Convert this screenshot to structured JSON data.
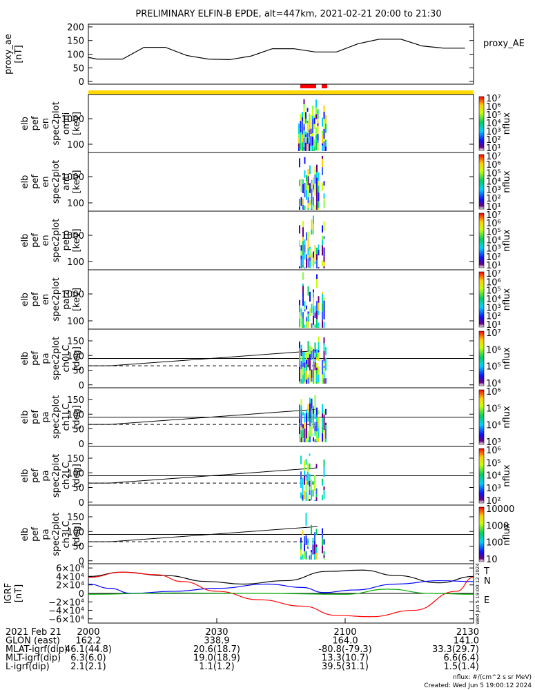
{
  "title": "PRELIMINARY ELFIN-B EPDE, alt=447km, 2021-02-21 20:00 to 21:30",
  "colors": {
    "curve": "#000000",
    "bar_red": "#ff0000",
    "bar_yellow": "#ffd800",
    "dashed": "#000000"
  },
  "chart_data": [
    {
      "type": "line",
      "panel": "proxy_ae",
      "ylabel": [
        "proxy_ae",
        "[nT]"
      ],
      "legend": "proxy_AE",
      "ylim": [
        -10,
        210
      ],
      "yticks": [
        0,
        50,
        100,
        150,
        200
      ],
      "x": [
        0,
        2,
        8,
        13,
        18,
        23,
        28,
        33,
        38,
        43,
        48,
        53,
        58,
        63,
        68,
        73,
        78,
        83,
        88
      ],
      "y": [
        88,
        82,
        82,
        125,
        125,
        95,
        82,
        80,
        93,
        120,
        120,
        108,
        108,
        138,
        155,
        155,
        130,
        122,
        122
      ]
    },
    {
      "type": "heatmap",
      "panel": "en_omni",
      "ylabel": [
        "elb",
        "pef",
        "en",
        "spec2plot",
        "omni",
        "[keV]"
      ],
      "yticks": [
        "100",
        "1000"
      ],
      "colorbar": {
        "label": "nflux",
        "ticks": [
          "10¹",
          "10²",
          "10³",
          "10⁴",
          "10⁵",
          "10⁶",
          "10⁷"
        ]
      }
    },
    {
      "type": "heatmap",
      "panel": "en_anti",
      "ylabel": [
        "elb",
        "pef",
        "en",
        "spec2plot",
        "anti",
        "[keV]"
      ],
      "yticks": [
        "100",
        "1000"
      ],
      "colorbar": {
        "label": "nflux",
        "ticks": [
          "10¹",
          "10²",
          "10³",
          "10⁴",
          "10⁵",
          "10⁶",
          "10⁷"
        ]
      }
    },
    {
      "type": "heatmap",
      "panel": "en_perp",
      "ylabel": [
        "elb",
        "pef",
        "en",
        "spec2plot",
        "perp",
        "[keV]"
      ],
      "yticks": [
        "100",
        "1000"
      ],
      "colorbar": {
        "label": "nflux",
        "ticks": [
          "10¹",
          "10²",
          "10³",
          "10⁴",
          "10⁵",
          "10⁶",
          "10⁷"
        ]
      }
    },
    {
      "type": "heatmap",
      "panel": "en_para",
      "ylabel": [
        "elb",
        "pef",
        "en",
        "spec2plot",
        "para",
        "[keV]"
      ],
      "yticks": [
        "100",
        "1000"
      ],
      "colorbar": {
        "label": "nflux",
        "ticks": [
          "10¹",
          "10²",
          "10³",
          "10⁴",
          "10⁵",
          "10⁶",
          "10⁷"
        ]
      }
    },
    {
      "type": "heatmap",
      "panel": "pa_ch0LC",
      "ylabel": [
        "elb",
        "pef",
        "pa",
        "spec2plot",
        "ch0LC",
        "[deg]"
      ],
      "yticks": [
        "0",
        "50",
        "100",
        "150"
      ],
      "ylim": [
        -10,
        190
      ],
      "colorbar": {
        "label": "nflux",
        "ticks": [
          "10⁴",
          "10⁵",
          "10⁶",
          "10⁷"
        ]
      }
    },
    {
      "type": "heatmap",
      "panel": "pa_ch1LC",
      "ylabel": [
        "elb",
        "pef",
        "pa",
        "spec2plot",
        "ch1LC",
        "[deg]"
      ],
      "yticks": [
        "0",
        "50",
        "100",
        "150"
      ],
      "ylim": [
        -10,
        190
      ],
      "colorbar": {
        "label": "nflux",
        "ticks": [
          "10³",
          "10⁴",
          "10⁵",
          "10⁶"
        ]
      }
    },
    {
      "type": "heatmap",
      "panel": "pa_ch2LC",
      "ylabel": [
        "elb",
        "pef",
        "pa",
        "spec2plot",
        "ch2LC",
        "[deg]"
      ],
      "yticks": [
        "0",
        "50",
        "100",
        "150"
      ],
      "ylim": [
        -10,
        190
      ],
      "colorbar": {
        "label": "nflux",
        "ticks": [
          "10²",
          "10³",
          "10⁴",
          "10⁵",
          "10⁶"
        ]
      }
    },
    {
      "type": "heatmap",
      "panel": "pa_ch3LC",
      "ylabel": [
        "elb",
        "pef",
        "pa",
        "spec2plot",
        "ch3LC",
        "[deg]"
      ],
      "yticks": [
        "0",
        "50",
        "100",
        "150"
      ],
      "ylim": [
        -10,
        190
      ],
      "colorbar": {
        "label": "nflux",
        "ticks": [
          "10",
          "100",
          "1000",
          "10000"
        ]
      }
    },
    {
      "type": "line",
      "panel": "igrf",
      "ylabel": [
        "IGRF",
        "[nT]"
      ],
      "ylim": [
        -70000,
        70000
      ],
      "yticks": [
        "−6×10⁴",
        "−4×10⁴",
        "−2×10⁴",
        "0",
        "2×10⁴",
        "4×10⁴",
        "6×10⁴"
      ],
      "legend": [
        "T",
        "N",
        "E"
      ],
      "series": [
        {
          "name": "T",
          "color": "#000000",
          "x": [
            0,
            8,
            18,
            28,
            36,
            46,
            56,
            64,
            72,
            82,
            90
          ],
          "y": [
            40000,
            50000,
            42000,
            28000,
            22000,
            30000,
            52000,
            55000,
            42000,
            25000,
            40000
          ]
        },
        {
          "name": "N",
          "color": "#0000ff",
          "x": [
            0,
            5,
            10,
            20,
            30,
            42,
            50,
            55,
            62,
            72,
            82,
            90
          ],
          "y": [
            22000,
            12000,
            0,
            5000,
            12000,
            22000,
            14000,
            2000,
            8000,
            22000,
            30000,
            28000
          ]
        },
        {
          "name": "E",
          "color": "#ff0000",
          "x": [
            0,
            8,
            16,
            22,
            30,
            40,
            50,
            58,
            66,
            76,
            86,
            90
          ],
          "y": [
            38000,
            50000,
            44000,
            28000,
            5000,
            -15000,
            -30000,
            -52000,
            -55000,
            -40000,
            5000,
            38000
          ]
        },
        {
          "name": "",
          "color": "#00aa00",
          "x": [
            0,
            20,
            40,
            60,
            70,
            80,
            90
          ],
          "y": [
            -2000,
            1000,
            0,
            -2000,
            10000,
            0,
            -2000
          ]
        }
      ]
    }
  ],
  "xaxis": {
    "rows": [
      "2021 Feb 21",
      "GLON (east)",
      "MLAT-igrf(dip)",
      "MLT-igrf(dip)",
      "L-igrf(dip)"
    ],
    "columns": [
      {
        "x": 0,
        "values": [
          "2000",
          "162.2",
          "46.1(44.8)",
          "6.3(6.0)",
          "2.1(2.1)"
        ]
      },
      {
        "x": 30,
        "values": [
          "2030",
          "338.9",
          "20.6(18.7)",
          "19.0(18.9)",
          "1.1(1.2)"
        ]
      },
      {
        "x": 60,
        "values": [
          "2100",
          "164.0",
          "-80.8(-79.3)",
          "13.3(10.7)",
          "39.5(31.1)"
        ]
      },
      {
        "x": 90,
        "values": [
          "2130",
          "141.0",
          "33.3(29.7)",
          "6.6(6.4)",
          "1.5(1.4)"
        ]
      }
    ]
  },
  "footer": {
    "units": "nflux: #/(cm^2 s sr MeV)",
    "created": "Created: Wed Jun  5 19:00:12 2024",
    "stamp": "Wed Jun  5 19:00:12 2024"
  }
}
